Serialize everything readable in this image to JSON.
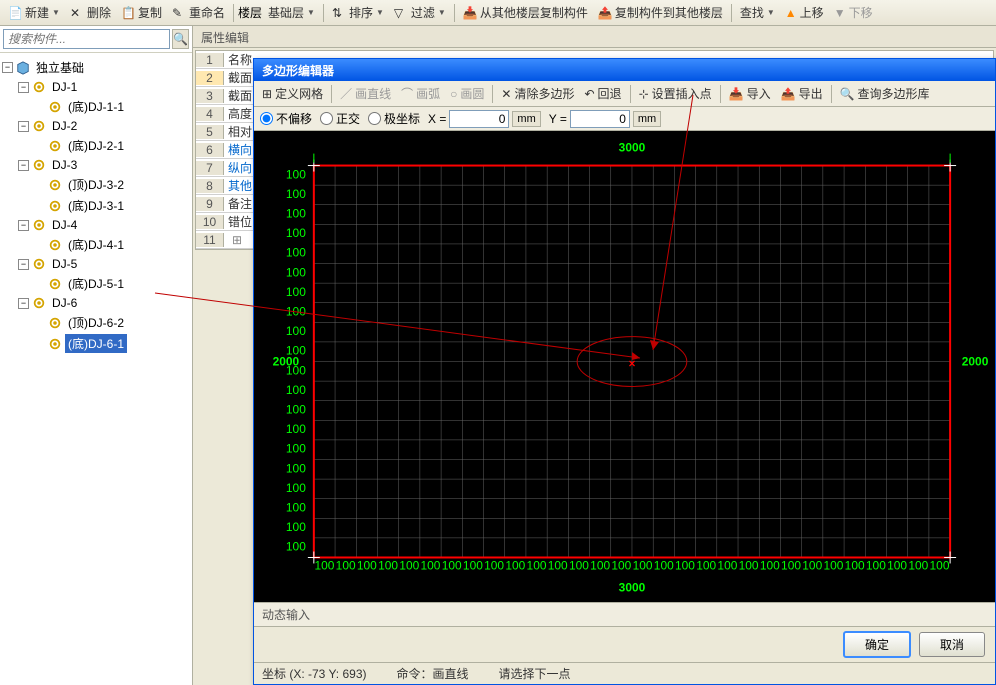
{
  "toolbar": {
    "new": "新建",
    "delete": "删除",
    "copy": "复制",
    "rename": "重命名",
    "floor": "楼层",
    "baseFloor": "基础层",
    "sort": "排序",
    "filter": "过滤",
    "copyFromFloor": "从其他楼层复制构件",
    "copyToFloor": "复制构件到其他楼层",
    "find": "查找",
    "moveUp": "上移",
    "moveDown": "下移"
  },
  "search": {
    "placeholder": "搜索构件..."
  },
  "tree": {
    "root": "独立基础",
    "nodes": [
      {
        "label": "DJ-1",
        "children": [
          {
            "label": "(底)DJ-1-1"
          }
        ]
      },
      {
        "label": "DJ-2",
        "children": [
          {
            "label": "(底)DJ-2-1"
          }
        ]
      },
      {
        "label": "DJ-3",
        "children": [
          {
            "label": "(顶)DJ-3-2"
          },
          {
            "label": "(底)DJ-3-1"
          }
        ]
      },
      {
        "label": "DJ-4",
        "children": [
          {
            "label": "(底)DJ-4-1"
          }
        ]
      },
      {
        "label": "DJ-5",
        "children": [
          {
            "label": "(底)DJ-5-1"
          }
        ]
      },
      {
        "label": "DJ-6",
        "children": [
          {
            "label": "(顶)DJ-6-2"
          },
          {
            "label": "(底)DJ-6-1",
            "selected": true
          }
        ]
      }
    ]
  },
  "propPanel": {
    "title": "属性编辑",
    "rows": [
      {
        "n": 1,
        "name": "名称",
        "hl": false
      },
      {
        "n": 2,
        "name": "截面",
        "hl": true
      },
      {
        "n": 3,
        "name": "截面",
        "hl": false
      },
      {
        "n": 4,
        "name": "高度",
        "hl": false
      },
      {
        "n": 5,
        "name": "相对",
        "hl": false
      },
      {
        "n": 6,
        "name": "横向",
        "hl": false,
        "color": "#0066cc"
      },
      {
        "n": 7,
        "name": "纵向",
        "hl": false,
        "color": "#0066cc"
      },
      {
        "n": 8,
        "name": "其他",
        "hl": false,
        "color": "#0066cc"
      },
      {
        "n": 9,
        "name": "备注",
        "hl": false
      },
      {
        "n": 10,
        "name": "错位",
        "hl": false
      },
      {
        "n": 11,
        "name": "",
        "hl": false
      }
    ]
  },
  "dialog": {
    "title": "多边形编辑器",
    "toolbar": {
      "defineGrid": "定义网格",
      "drawLine": "画直线",
      "drawArc": "画弧",
      "drawCircle": "画圆",
      "clearPoly": "清除多边形",
      "undo": "回退",
      "setInsert": "设置插入点",
      "import": "导入",
      "export": "导出",
      "queryLib": "查询多边形库"
    },
    "coords": {
      "noOffset": "不偏移",
      "ortho": "正交",
      "polar": "极坐标",
      "xLabel": "X =",
      "yLabel": "Y =",
      "xVal": "0",
      "yVal": "0",
      "unit": "mm"
    },
    "canvas": {
      "width_mm": 3000,
      "height_mm": 2000,
      "grid_step": 100,
      "rect_color": "#ff0000",
      "grid_color": "#666666",
      "bg": "#000000",
      "dim_color": "#00ff00",
      "tick_color": "#00ff00",
      "center_mark": "×",
      "center_color": "#ff0000",
      "top_label": "3000",
      "bottom_label": "3000",
      "left_label": "2000",
      "right_label": "2000",
      "tick_value": "100"
    },
    "inputBar": "动态输入",
    "ok": "确定",
    "cancel": "取消",
    "status": {
      "coords": "坐标 (X: -73 Y: 693)",
      "cmd": "命令：画直线",
      "prompt": "请选择下一点"
    }
  }
}
